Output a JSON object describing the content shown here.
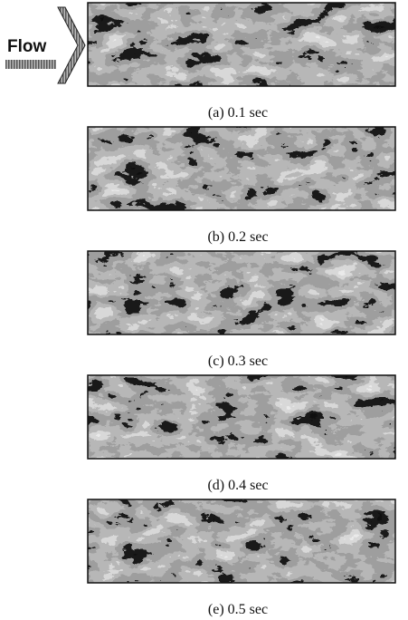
{
  "flow_label": "Flow",
  "panels": [
    {
      "caption": "(a) 0.1 sec"
    },
    {
      "caption": "(b) 0.2 sec"
    },
    {
      "caption": "(c) 0.3 sec"
    },
    {
      "caption": "(d) 0.4 sec"
    },
    {
      "caption": "(e) 0.5 sec"
    }
  ]
}
